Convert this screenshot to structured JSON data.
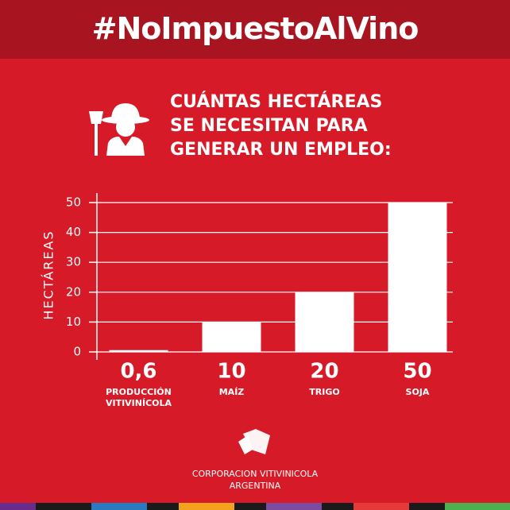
{
  "header": {
    "hashtag": "#NoImpuestoAlVino"
  },
  "chart_data": {
    "type": "bar",
    "title": [
      "CUÁNTAS HECTÁREAS",
      "SE NECESITAN PARA",
      "GENERAR UN EMPLEO:"
    ],
    "y_label": "HECTÁREAS",
    "categories": [
      "PRODUCCIÓN VITIVINÍCOLA",
      "MAÍZ",
      "TRIGO",
      "SOJA"
    ],
    "values": [
      0.6,
      10,
      20,
      50
    ],
    "value_labels": [
      "0,6",
      "10",
      "20",
      "50"
    ],
    "color": "#ffffff",
    "ylim": [
      0,
      50
    ],
    "yticks": [
      0,
      10,
      20,
      30,
      40,
      50
    ],
    "grid": true
  },
  "footer": {
    "org_lines": [
      "CORPORACION VITIVINICOLA",
      "ARGENTINA"
    ]
  }
}
